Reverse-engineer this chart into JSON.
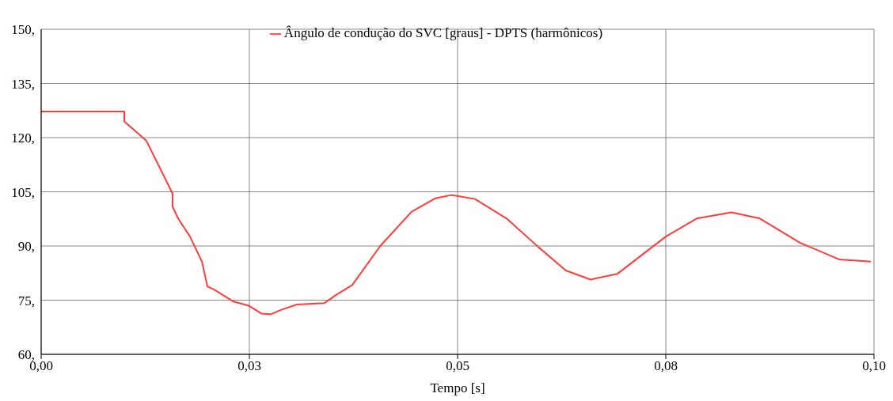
{
  "chart_data": {
    "type": "line",
    "xlabel": "Tempo [s]",
    "legend": "top",
    "grid": true,
    "marker": "none",
    "line_style": "solid",
    "xlim": [
      0,
      0.1
    ],
    "xticks": [
      {
        "value": 0,
        "label": "0,00"
      },
      {
        "value": 0.025,
        "label": "0,03"
      },
      {
        "value": 0.05,
        "label": "0,05"
      },
      {
        "value": 0.075,
        "label": "0,08"
      },
      {
        "value": 0.1,
        "label": "0,10"
      }
    ],
    "ylim": [
      60,
      150
    ],
    "yticks": [
      {
        "value": 60,
        "label": "60,"
      },
      {
        "value": 75,
        "label": "75,"
      },
      {
        "value": 90,
        "label": "90,"
      },
      {
        "value": 105,
        "label": "105,"
      },
      {
        "value": 120,
        "label": "120,"
      },
      {
        "value": 135,
        "label": "135,"
      },
      {
        "value": 150,
        "label": "150,"
      }
    ],
    "series": [
      {
        "name": "Ângulo de condução do SVC [graus] - DPTS (harmônicos)",
        "color": "#ff3b3b",
        "x": [
          0,
          0.00998,
          0.00998,
          0.01264,
          0.01578,
          0.01578,
          0.01645,
          0.01787,
          0.0193,
          0.01996,
          0.02072,
          0.0231,
          0.025,
          0.02643,
          0.02757,
          0.0288,
          0.0307,
          0.03403,
          0.03546,
          0.03736,
          0.04068,
          0.04449,
          0.04734,
          0.04924,
          0.05209,
          0.05589,
          0.0597,
          0.063,
          0.06597,
          0.0692,
          0.075,
          0.0787,
          0.08289,
          0.0863,
          0.0911,
          0.0958,
          0.09962
        ],
        "values": [
          127.2,
          127.2,
          124.5,
          119.1,
          104.5,
          100.9,
          97.6,
          92.6,
          85.7,
          78.8,
          78.0,
          74.6,
          73.4,
          71.3,
          71.1,
          72.3,
          73.8,
          74.2,
          76.5,
          79.2,
          89.9,
          99.5,
          103.2,
          104.1,
          103.0,
          97.6,
          89.7,
          83.2,
          80.7,
          82.3,
          92.6,
          97.6,
          99.3,
          97.6,
          90.9,
          86.3,
          85.7
        ]
      }
    ]
  }
}
